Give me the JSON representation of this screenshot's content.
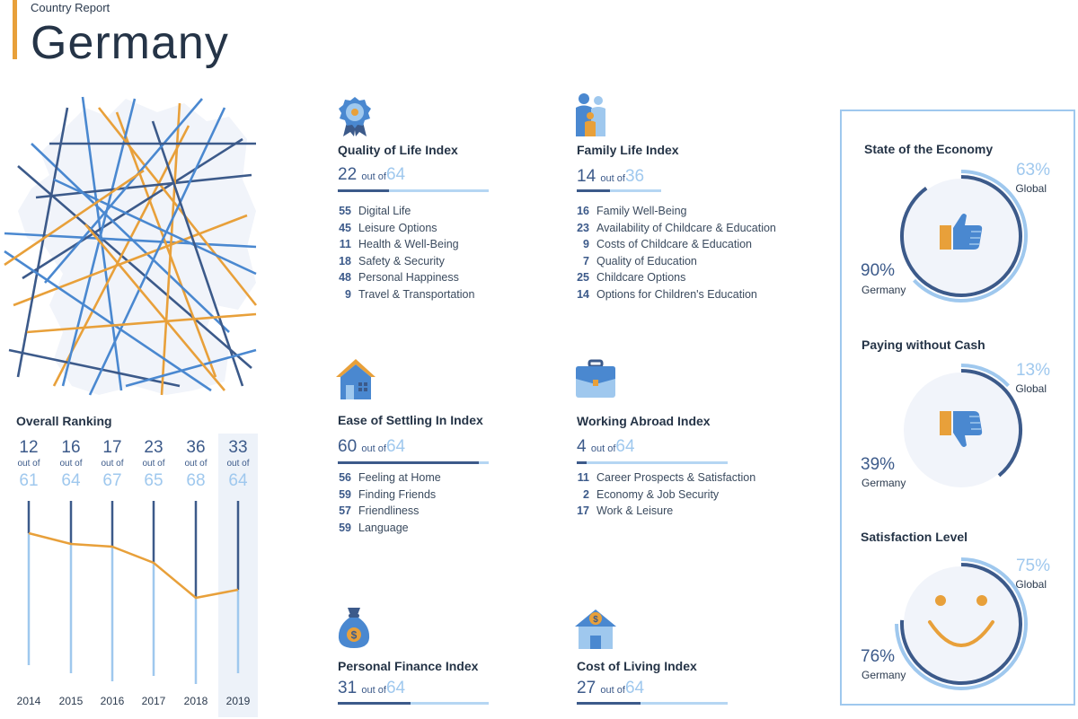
{
  "header": {
    "subtitle": "Country Report",
    "title": "Germany"
  },
  "overall_ranking": {
    "title": "Overall Ranking",
    "out_of_label": "out of",
    "colors": {
      "stem_dark": "#3c5a8a",
      "stem_light": "#9fc8ee",
      "line": "#e8a03a"
    },
    "years": [
      {
        "year": "2014",
        "rank": "12",
        "total": "61"
      },
      {
        "year": "2015",
        "rank": "16",
        "total": "64"
      },
      {
        "year": "2016",
        "rank": "17",
        "total": "67"
      },
      {
        "year": "2017",
        "rank": "23",
        "total": "65"
      },
      {
        "year": "2018",
        "rank": "36",
        "total": "68"
      },
      {
        "year": "2019",
        "rank": "33",
        "total": "64"
      }
    ]
  },
  "indices": {
    "quality_of_life": {
      "title": "Quality of Life Index",
      "rank": "22",
      "out_of_label": "out of",
      "total": "64",
      "icon": "award-badge-icon",
      "items": [
        {
          "value": "55",
          "label": "Digital Life"
        },
        {
          "value": "45",
          "label": "Leisure Options"
        },
        {
          "value": "11",
          "label": "Health & Well-Being"
        },
        {
          "value": "18",
          "label": "Safety & Security"
        },
        {
          "value": "48",
          "label": "Personal Happiness"
        },
        {
          "value": "9",
          "label": "Travel & Transportation"
        }
      ]
    },
    "family_life": {
      "title": "Family Life Index",
      "rank": "14",
      "out_of_label": "out of",
      "total": "36",
      "icon": "family-icon",
      "items": [
        {
          "value": "16",
          "label": "Family Well-Being"
        },
        {
          "value": "23",
          "label": "Availability of Childcare & Education"
        },
        {
          "value": "9",
          "label": "Costs of Childcare & Education"
        },
        {
          "value": "7",
          "label": "Quality of Education"
        },
        {
          "value": "25",
          "label": "Childcare Options"
        },
        {
          "value": "14",
          "label": "Options for Children's Education"
        }
      ]
    },
    "ease_of_settling": {
      "title": "Ease of Settling In Index",
      "rank": "60",
      "out_of_label": "out of",
      "total": "64",
      "icon": "house-icon",
      "items": [
        {
          "value": "56",
          "label": "Feeling at Home"
        },
        {
          "value": "59",
          "label": "Finding Friends"
        },
        {
          "value": "57",
          "label": "Friendliness"
        },
        {
          "value": "59",
          "label": "Language"
        }
      ]
    },
    "working_abroad": {
      "title": "Working Abroad Index",
      "rank": "4",
      "out_of_label": "out of",
      "total": "64",
      "icon": "briefcase-icon",
      "items": [
        {
          "value": "11",
          "label": "Career Prospects & Satisfaction"
        },
        {
          "value": "2",
          "label": "Economy & Job Security"
        },
        {
          "value": "17",
          "label": "Work & Leisure"
        }
      ]
    },
    "personal_finance": {
      "title": "Personal Finance Index",
      "rank": "31",
      "out_of_label": "out of",
      "total": "64",
      "icon": "money-bag-icon"
    },
    "cost_of_living": {
      "title": "Cost of Living Index",
      "rank": "27",
      "out_of_label": "out of",
      "total": "64",
      "icon": "house-coin-icon"
    }
  },
  "side_panel": {
    "state_of_economy": {
      "title": "State of the Economy",
      "global_pct": "63%",
      "global_label": "Global",
      "germany_pct": "90%",
      "germany_label": "Germany",
      "icon": "thumbs-up-icon",
      "global_value": 63,
      "germany_value": 90
    },
    "paying_without_cash": {
      "title": "Paying without Cash",
      "global_pct": "13%",
      "global_label": "Global",
      "germany_pct": "39%",
      "germany_label": "Germany",
      "icon": "thumbs-down-icon",
      "global_value": 13,
      "germany_value": 39
    },
    "satisfaction_level": {
      "title": "Satisfaction Level",
      "global_pct": "75%",
      "global_label": "Global",
      "germany_pct": "76%",
      "germany_label": "Germany",
      "icon": "smiley-face-icon",
      "global_value": 75,
      "germany_value": 76
    }
  },
  "chart_data": {
    "type": "line",
    "title": "Overall Ranking",
    "categories": [
      "2014",
      "2015",
      "2016",
      "2017",
      "2018",
      "2019"
    ],
    "series": [
      {
        "values": [
          12,
          16,
          17,
          23,
          36,
          33
        ]
      }
    ],
    "totals": [
      61,
      64,
      67,
      65,
      68,
      64
    ]
  }
}
